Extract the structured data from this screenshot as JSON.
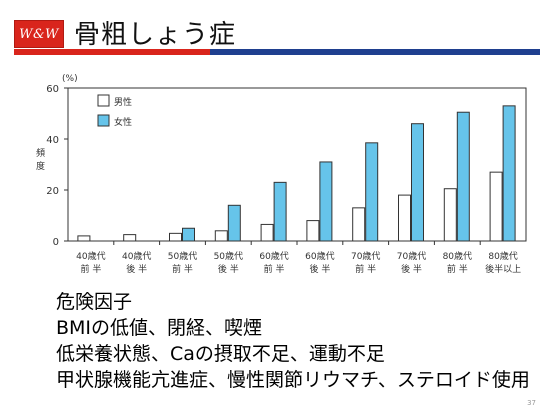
{
  "logo": {
    "text": "W&W"
  },
  "title": "骨粗しょう症",
  "chart_data": {
    "type": "bar",
    "ylabel": "頻度",
    "yunit": "(%)",
    "ylim": [
      0,
      60
    ],
    "yticks": [
      0,
      20,
      40,
      60
    ],
    "legend_position": "top-left",
    "categories": [
      [
        "40歳代",
        "前 半"
      ],
      [
        "40歳代",
        "後 半"
      ],
      [
        "50歳代",
        "前 半"
      ],
      [
        "50歳代",
        "後 半"
      ],
      [
        "60歳代",
        "前 半"
      ],
      [
        "60歳代",
        "後 半"
      ],
      [
        "70歳代",
        "前 半"
      ],
      [
        "70歳代",
        "後 半"
      ],
      [
        "80歳代",
        "前 半"
      ],
      [
        "80歳代",
        "後半以上"
      ]
    ],
    "series": [
      {
        "name": "男性",
        "color": "#ffffff",
        "values": [
          2,
          2.5,
          3,
          4,
          6.5,
          8,
          13,
          18,
          20.5,
          27
        ]
      },
      {
        "name": "女性",
        "color": "#66c4ea",
        "values": [
          0,
          0,
          5,
          14,
          23,
          31,
          38.5,
          46,
          50.5,
          53
        ]
      }
    ]
  },
  "factors": [
    "危険因子",
    "BMIの低値、閉経、喫煙",
    "低栄養状態、Caの摂取不足、運動不足",
    "甲状腺機能亢進症、慢性関節リウマチ、ステロイド使用"
  ],
  "page_number": "37"
}
